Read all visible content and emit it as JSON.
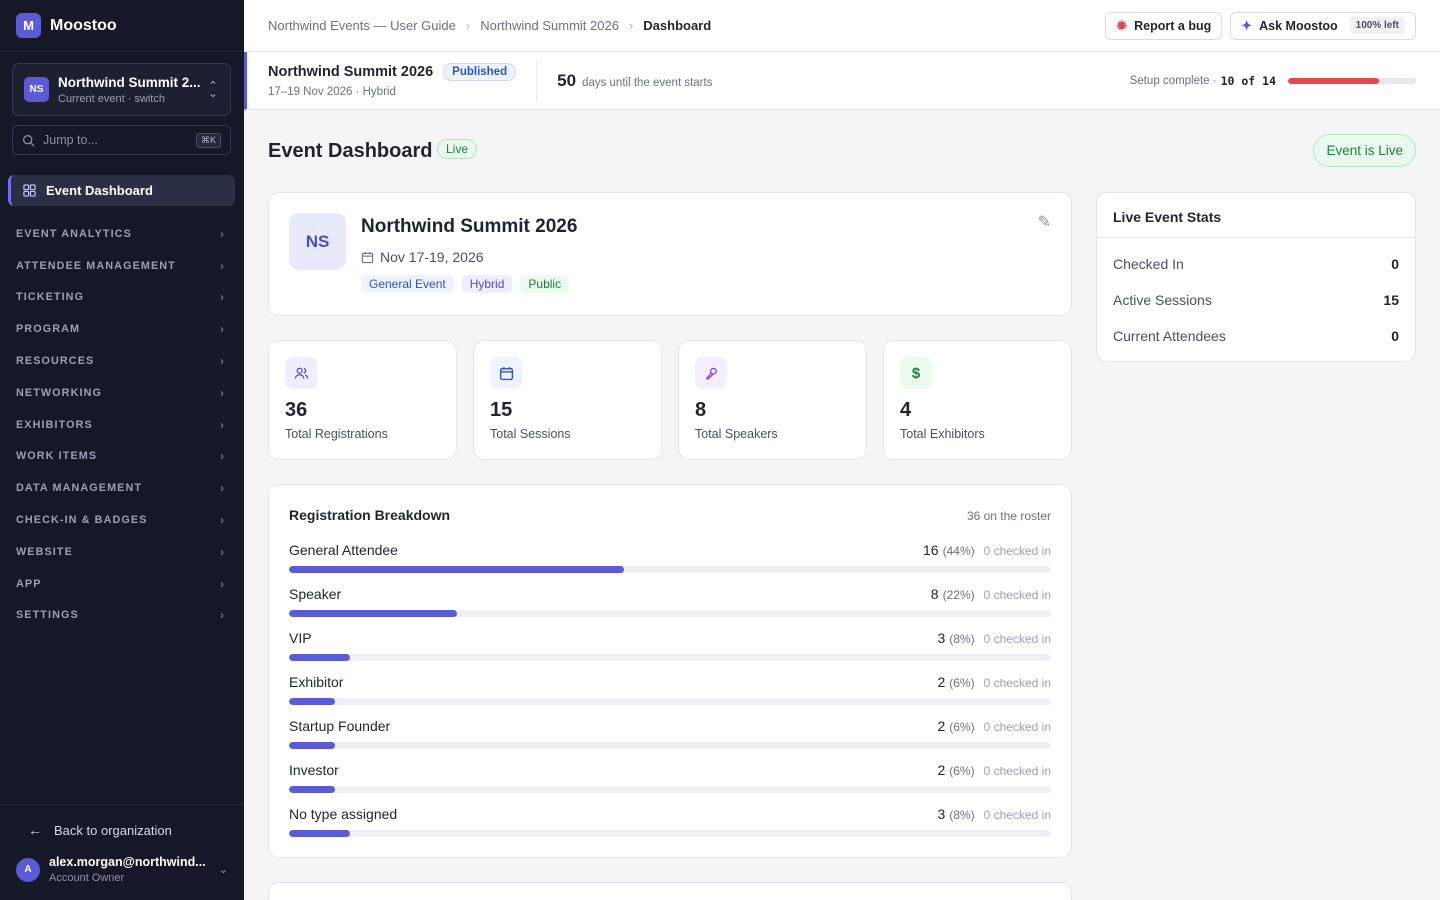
{
  "app": {
    "name": "Moostoo",
    "logo_letter": "M"
  },
  "event_switcher": {
    "avatar": "NS",
    "name": "Northwind Summit 2...",
    "subtitle": "Current event · switch"
  },
  "jump": {
    "placeholder": "Jump to...",
    "shortcut": "⌘K"
  },
  "sidebar": {
    "active": "Event Dashboard",
    "items": [
      {
        "label": "EVENT ANALYTICS"
      },
      {
        "label": "ATTENDEE MANAGEMENT"
      },
      {
        "label": "TICKETING"
      },
      {
        "label": "PROGRAM"
      },
      {
        "label": "RESOURCES"
      },
      {
        "label": "NETWORKING"
      },
      {
        "label": "EXHIBITORS"
      },
      {
        "label": "WORK ITEMS"
      },
      {
        "label": "DATA MANAGEMENT"
      },
      {
        "label": "CHECK-IN & BADGES"
      },
      {
        "label": "WEBSITE"
      },
      {
        "label": "APP"
      },
      {
        "label": "SETTINGS"
      }
    ],
    "back": "Back to organization",
    "user": {
      "avatar": "A",
      "email": "alex.morgan@northwind...",
      "role": "Account Owner"
    }
  },
  "breadcrumb": [
    "Northwind Events — User Guide",
    "Northwind Summit 2026",
    "Dashboard"
  ],
  "topbar": {
    "bug": "Report a bug",
    "ask": "Ask Moostoo",
    "ask_left": "100% left"
  },
  "subbar": {
    "title": "Northwind Summit 2026",
    "status": "Published",
    "meta": "17–19 Nov 2026 · Hybrid",
    "days": "50",
    "days_label": "days until the event starts",
    "setup_label": "Setup complete ·",
    "setup_value": "10 of 14",
    "setup_progress": 0.714
  },
  "page": {
    "title": "Event Dashboard",
    "live_tag": "Live",
    "live_button": "Event is Live"
  },
  "event_card": {
    "avatar": "NS",
    "name": "Northwind Summit 2026",
    "date": "Nov 17-19, 2026",
    "tags": [
      "General Event",
      "Hybrid",
      "Public"
    ]
  },
  "stats": [
    {
      "value": "36",
      "label": "Total Registrations",
      "icon": "users-icon"
    },
    {
      "value": "15",
      "label": "Total Sessions",
      "icon": "calendar-icon"
    },
    {
      "value": "8",
      "label": "Total Speakers",
      "icon": "microphone-icon"
    },
    {
      "value": "4",
      "label": "Total Exhibitors",
      "icon": "dollar-icon"
    }
  ],
  "registration": {
    "title": "Registration Breakdown",
    "roster": "36 on the roster",
    "rows": [
      {
        "label": "General Attendee",
        "count": "16",
        "pct": "(44%)",
        "checked": "0 checked in",
        "fraction": 0.44
      },
      {
        "label": "Speaker",
        "count": "8",
        "pct": "(22%)",
        "checked": "0 checked in",
        "fraction": 0.22
      },
      {
        "label": "VIP",
        "count": "3",
        "pct": "(8%)",
        "checked": "0 checked in",
        "fraction": 0.08
      },
      {
        "label": "Exhibitor",
        "count": "2",
        "pct": "(6%)",
        "checked": "0 checked in",
        "fraction": 0.06
      },
      {
        "label": "Startup Founder",
        "count": "2",
        "pct": "(6%)",
        "checked": "0 checked in",
        "fraction": 0.06
      },
      {
        "label": "Investor",
        "count": "2",
        "pct": "(6%)",
        "checked": "0 checked in",
        "fraction": 0.06
      },
      {
        "label": "No type assigned",
        "count": "3",
        "pct": "(8%)",
        "checked": "0 checked in",
        "fraction": 0.08
      }
    ]
  },
  "live_stats": {
    "title": "Live Event Stats",
    "rows": [
      {
        "label": "Checked In",
        "value": "0"
      },
      {
        "label": "Active Sessions",
        "value": "15"
      },
      {
        "label": "Current Attendees",
        "value": "0"
      }
    ]
  },
  "colors": {
    "accent": "#5b5bd6",
    "live_green": "#1a7f3c",
    "progress_red": "#e5484d",
    "sidebar_bg": "#151826"
  }
}
